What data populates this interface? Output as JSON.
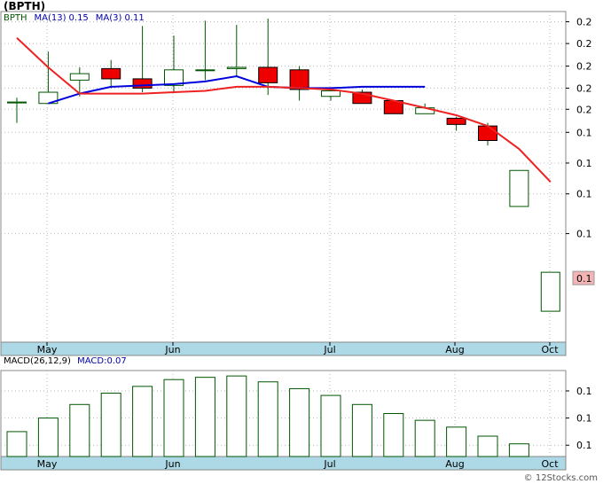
{
  "ticker": "(BPTH)",
  "legend": {
    "symbol": "BPTH",
    "ma13_label": "MA(13)",
    "ma13_value": "0.15",
    "ma3_label": "MA(3)",
    "ma3_value": "0.11"
  },
  "macd_legend": {
    "label": "MACD(26,12,9)",
    "value_label": "MACD:0.07"
  },
  "footer": "© 12Stocks.com",
  "colors": {
    "up_candle": "#ffffff",
    "down_candle": "#ee0000",
    "wick": "#005500",
    "ma13": "#0000dd",
    "ma3": "#ee2222",
    "axis_strip": "#add8e6",
    "last_price_box": "#f4b4b4",
    "macd_bar": "#005500"
  },
  "chart_data": [
    {
      "type": "candlestick",
      "x_labels": [
        "May",
        "Jun",
        "Jul",
        "Aug",
        "Oct"
      ],
      "y_tick_labels": [
        "0.2",
        "0.2",
        "0.2",
        "0.2",
        "0.2",
        "0.1",
        "0.1",
        "0.1",
        "0.1"
      ],
      "last_price_label": "0.1",
      "candles": [
        {
          "open": 0.179,
          "close": 0.179,
          "high": 0.182,
          "low": 0.165,
          "up": true
        },
        {
          "open": 0.178,
          "close": 0.186,
          "high": 0.218,
          "low": 0.178,
          "up": true
        },
        {
          "open": 0.195,
          "close": 0.2,
          "high": 0.205,
          "low": 0.183,
          "up": true
        },
        {
          "open": 0.204,
          "close": 0.196,
          "high": 0.211,
          "low": 0.189,
          "up": false
        },
        {
          "open": 0.196,
          "close": 0.189,
          "high": 0.241,
          "low": 0.186,
          "up": false
        },
        {
          "open": 0.191,
          "close": 0.203,
          "high": 0.232,
          "low": 0.186,
          "up": true
        },
        {
          "open": 0.203,
          "close": 0.203,
          "high": 0.246,
          "low": 0.195,
          "up": true
        },
        {
          "open": 0.204,
          "close": 0.205,
          "high": 0.242,
          "low": 0.198,
          "up": true
        },
        {
          "open": 0.205,
          "close": 0.193,
          "high": 0.248,
          "low": 0.184,
          "up": false
        },
        {
          "open": 0.203,
          "close": 0.188,
          "high": 0.206,
          "low": 0.18,
          "up": false
        },
        {
          "open": 0.183,
          "close": 0.187,
          "high": 0.189,
          "low": 0.18,
          "up": true
        },
        {
          "open": 0.186,
          "close": 0.178,
          "high": 0.188,
          "low": 0.178,
          "up": false
        },
        {
          "open": 0.18,
          "close": 0.171,
          "high": 0.18,
          "low": 0.171,
          "up": false
        },
        {
          "open": 0.171,
          "close": 0.175,
          "high": 0.178,
          "low": 0.171,
          "up": true
        },
        {
          "open": 0.168,
          "close": 0.164,
          "high": 0.169,
          "low": 0.16,
          "up": false
        },
        {
          "open": 0.163,
          "close": 0.154,
          "high": 0.165,
          "low": 0.151,
          "up": false
        },
        {
          "open": 0.119,
          "close": 0.137,
          "high": 0.137,
          "low": 0.119,
          "up": true
        },
        {
          "open": 0.079,
          "close": 0.092,
          "high": 0.092,
          "low": 0.079,
          "up": true
        }
      ],
      "series": [
        {
          "name": "MA(13)",
          "values": [
            null,
            0.178,
            0.185,
            0.19,
            0.191,
            0.192,
            0.194,
            0.198,
            0.19,
            0.189,
            0.189,
            0.19,
            0.19,
            0.19,
            null,
            null,
            null,
            null
          ]
        },
        {
          "name": "MA(3)",
          "values": [
            0.23,
            0.205,
            0.185,
            0.185,
            0.185,
            0.186,
            0.187,
            0.19,
            0.19,
            0.189,
            0.188,
            0.185,
            0.18,
            0.175,
            0.17,
            0.163,
            0.149,
            0.131
          ]
        }
      ]
    },
    {
      "type": "bar",
      "title": "MACD(26,12,9)",
      "y_tick_labels": [
        "0.1",
        "0.1",
        "0.1"
      ],
      "values": [
        0.055,
        0.085,
        0.115,
        0.14,
        0.155,
        0.17,
        0.175,
        0.178,
        0.165,
        0.15,
        0.135,
        0.115,
        0.095,
        0.08,
        0.065,
        0.045,
        0.028,
        0.0
      ]
    }
  ]
}
